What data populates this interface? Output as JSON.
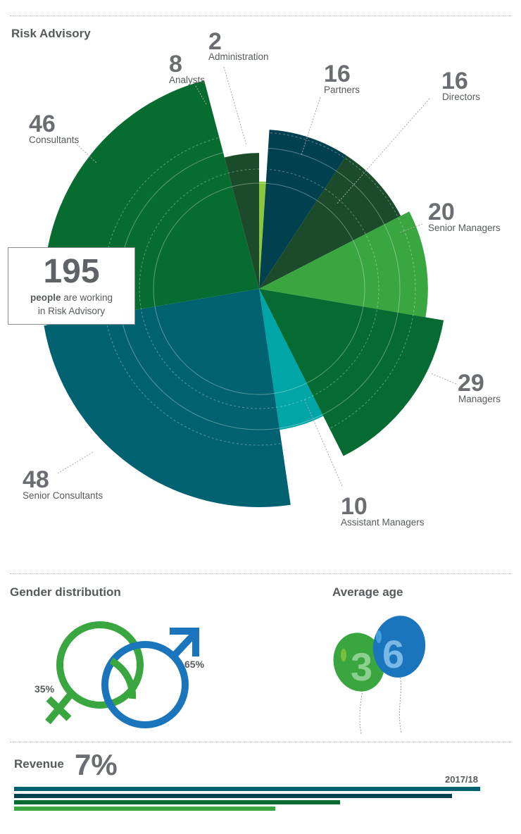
{
  "header": {
    "title": "Risk Advisory"
  },
  "total": {
    "value": "195",
    "text_bold": "people",
    "text_rest": " are working",
    "text_line2": "in Risk Advisory"
  },
  "chart_data": {
    "type": "pie",
    "title": "Risk Advisory",
    "total": 195,
    "slices": [
      {
        "label": "Administration",
        "value": 2,
        "color": "#8cc63f"
      },
      {
        "label": "Partners",
        "value": 16,
        "color": "#00404f"
      },
      {
        "label": "Directors",
        "value": 16,
        "color": "#1b4b2a"
      },
      {
        "label": "Senior Managers",
        "value": 20,
        "color": "#3aa640"
      },
      {
        "label": "Managers",
        "value": 29,
        "color": "#066b33"
      },
      {
        "label": "Assistant Managers",
        "value": 10,
        "color": "#00a6a6"
      },
      {
        "label": "Senior Consultants",
        "value": 48,
        "color": "#006171"
      },
      {
        "label": "Consultants",
        "value": 46,
        "color": "#076c30"
      },
      {
        "label": "Analysts",
        "value": 8,
        "color": "#1b4b2a"
      }
    ]
  },
  "labels": [
    {
      "num": "2",
      "text": "Administration"
    },
    {
      "num": "16",
      "text": "Partners"
    },
    {
      "num": "16",
      "text": "Directors"
    },
    {
      "num": "20",
      "text": "Senior Managers"
    },
    {
      "num": "29",
      "text": "Managers"
    },
    {
      "num": "10",
      "text": "Assistant Managers"
    },
    {
      "num": "48",
      "text": "Senior Consultants"
    },
    {
      "num": "46",
      "text": "Consultants"
    },
    {
      "num": "8",
      "text": "Analysts"
    }
  ],
  "gender": {
    "title": "Gender distribution",
    "female_pct": "35%",
    "male_pct": "65%",
    "female_color": "#3aa640",
    "male_color": "#1a75bc"
  },
  "age": {
    "title": "Average age",
    "digit1": "3",
    "digit2": "6"
  },
  "revenue": {
    "title": "Revenue",
    "value": "7%",
    "year": "2017/18",
    "bars": [
      {
        "fraction": 1.0,
        "color": "#006171"
      },
      {
        "fraction": 0.94,
        "color": "#00404f"
      },
      {
        "fraction": 0.7,
        "color": "#066b33"
      },
      {
        "fraction": 0.56,
        "color": "#3aa640"
      }
    ]
  }
}
